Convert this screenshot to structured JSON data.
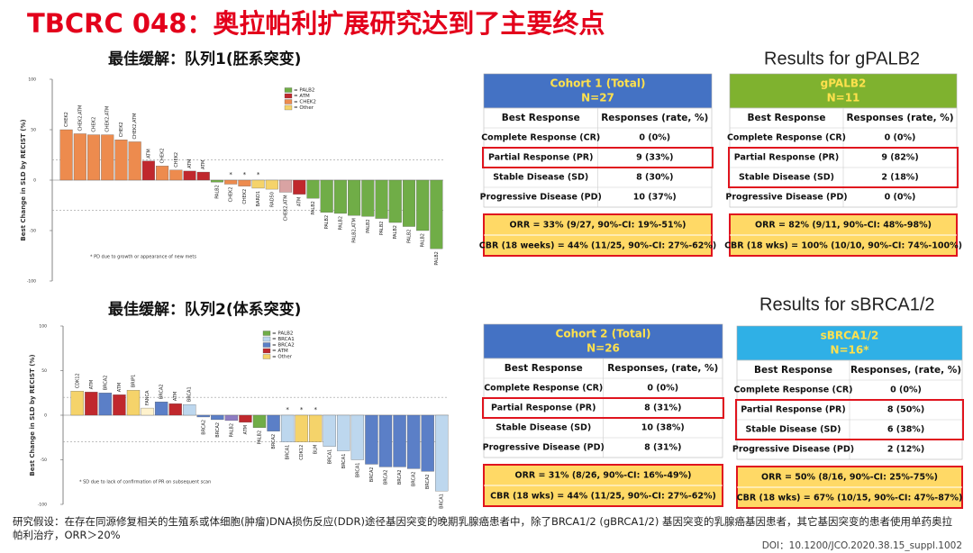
{
  "title": "TBCRC 048：奥拉帕利扩展研究达到了主要终点",
  "chart_data": [
    {
      "type": "bar",
      "title": "最佳缓解：队列1(胚系突变)",
      "y_label": "Best Change in SLD by RECIST (%)",
      "categories": [
        "CHEK2",
        "CHEK2,ATM",
        "CHEK2",
        "CHEK2,ATM",
        "CHEK2",
        "CHEK2,ATM",
        "ATM",
        "CHEK2",
        "CHEK2",
        "ATM",
        "ATM",
        "PALB2",
        "CHEK2",
        "CHEK2",
        "BARD1",
        "RAD50",
        "CHEK2,ATM",
        "ATM",
        "PALB2",
        "PALB2",
        "PALB2",
        "PALB2,ATM",
        "PALB2",
        "PALB2",
        "PALB2",
        "PALB2",
        "PALB2",
        "PALB2"
      ],
      "markers": [
        null,
        null,
        null,
        null,
        null,
        null,
        null,
        null,
        null,
        null,
        null,
        null,
        "*",
        "*",
        "*",
        null,
        null,
        null,
        null,
        null,
        null,
        null,
        null,
        null,
        null,
        null,
        null,
        null
      ],
      "values": [
        50,
        46,
        45,
        45,
        40,
        38,
        19,
        14,
        10,
        9,
        8,
        -2,
        -4,
        -6,
        -8,
        -9,
        -12,
        -14,
        -18,
        -32,
        -33,
        -35,
        -36,
        -38,
        -42,
        -46,
        -50,
        -68
      ],
      "colors": [
        "#ed8b4e",
        "#ed8b4e",
        "#ed8b4e",
        "#ed8b4e",
        "#ed8b4e",
        "#ed8b4e",
        "#c0282d",
        "#ed8b4e",
        "#ed8b4e",
        "#c0282d",
        "#c0282d",
        "#70ad47",
        "#ed8b4e",
        "#ed8b4e",
        "#f5d36a",
        "#f5d36a",
        "#d9a3a3",
        "#c0282d",
        "#70ad47",
        "#70ad47",
        "#70ad47",
        "#70ad47",
        "#70ad47",
        "#70ad47",
        "#70ad47",
        "#70ad47",
        "#70ad47",
        "#70ad47"
      ],
      "ylim": [
        -100,
        100
      ],
      "yticks": [
        -100,
        -50,
        0,
        50,
        100
      ],
      "ref_lines": [
        20,
        -30
      ],
      "legend": [
        {
          "label": "= PALB2",
          "color": "#70ad47"
        },
        {
          "label": "= ATM",
          "color": "#c0282d"
        },
        {
          "label": "= CHEK2",
          "color": "#ed8b4e"
        },
        {
          "label": "= Other",
          "color": "#f5d36a"
        }
      ],
      "note": "* PD due to growth or appearance of new mets"
    },
    {
      "type": "bar",
      "title": "最佳缓解：队列2(体系突变)",
      "y_label": "Best Change in SLD by RECIST (%)",
      "categories": [
        "CDK12",
        "ATM",
        "BRCA2",
        "ATM",
        "BRIP1",
        "FANCA",
        "BRCA2",
        "ATM",
        "BRCA1",
        "BRCA2",
        "BRCA2",
        "PALB2",
        "ATM",
        "PALB2",
        "BRCA2",
        "BRCA1",
        "CDK12",
        "BLM",
        "BRCA1",
        "BRCA1",
        "BRCA1",
        "BRCA2",
        "BRCA2",
        "BRCA2",
        "BRCA2",
        "BRCA2",
        "BRCA1"
      ],
      "markers": [
        null,
        null,
        null,
        null,
        null,
        null,
        null,
        null,
        null,
        null,
        null,
        null,
        null,
        null,
        null,
        "*",
        "*",
        "*",
        null,
        null,
        null,
        null,
        null,
        null,
        null,
        null,
        null
      ],
      "values": [
        27,
        26,
        25,
        23,
        28,
        8,
        15,
        13,
        12,
        -2,
        -5,
        -6,
        -8,
        -14,
        -18,
        -30,
        -30,
        -30,
        -35,
        -40,
        -50,
        -55,
        -58,
        -58,
        -60,
        -63,
        -85
      ],
      "colors": [
        "#f5d36a",
        "#c0282d",
        "#5b7fc7",
        "#c0282d",
        "#f5d36a",
        "#fff2cc",
        "#5b7fc7",
        "#c0282d",
        "#bdd7ee",
        "#5b7fc7",
        "#5b7fc7",
        "#8e7cc3",
        "#c0282d",
        "#70ad47",
        "#5b7fc7",
        "#bdd7ee",
        "#f5d36a",
        "#f5d36a",
        "#bdd7ee",
        "#bdd7ee",
        "#bdd7ee",
        "#5b7fc7",
        "#5b7fc7",
        "#5b7fc7",
        "#5b7fc7",
        "#5b7fc7",
        "#bdd7ee"
      ],
      "ylim": [
        -100,
        100
      ],
      "yticks": [
        -100,
        -50,
        0,
        50,
        100
      ],
      "ref_lines": [
        20,
        -30
      ],
      "legend": [
        {
          "label": "= PALB2",
          "color": "#70ad47"
        },
        {
          "label": "= BRCA1",
          "color": "#bdd7ee"
        },
        {
          "label": "= BRCA2",
          "color": "#5b7fc7"
        },
        {
          "label": "= ATM",
          "color": "#c0282d"
        },
        {
          "label": "= Other",
          "color": "#f5d36a"
        }
      ],
      "note": "* SD due to lack of confirmation of PR on subsequent scan"
    }
  ],
  "results_headings": [
    "Results for gPALB2",
    "Results for sBRCA1/2"
  ],
  "tables": [
    {
      "title": "Cohort 1 (Total)",
      "n": "N=27",
      "color": "#4472c4",
      "columns": [
        "Best Response",
        "Responses (rate, %)"
      ],
      "rows": [
        [
          "Complete Response (CR)",
          "0 (0%)"
        ],
        [
          "Partial Response (PR)",
          "9 (33%)"
        ],
        [
          "Stable Disease (SD)",
          "8 (30%)"
        ],
        [
          "Progressive Disease (PD)",
          "10 (37%)"
        ]
      ],
      "summary": [
        "ORR = 33% (9/27, 90%-CI: 19%-51%)",
        "CBR (18 weeks) = 44% (11/25, 90%-CI: 27%-62%)"
      ]
    },
    {
      "title": "gPALB2",
      "n": "N=11",
      "color": "#7fb22f",
      "columns": [
        "Best Response",
        "Responses (rate, %)"
      ],
      "rows": [
        [
          "Complete Response (CR)",
          "0 (0%)"
        ],
        [
          "Partial Response (PR)",
          "9 (82%)"
        ],
        [
          "Stable Disease (SD)",
          "2 (18%)"
        ],
        [
          "Progressive Disease (PD)",
          "0 (0%)"
        ]
      ],
      "summary": [
        "ORR = 82% (9/11, 90%-CI: 48%-98%)",
        "CBR (18 wks) = 100% (10/10, 90%-CI: 74%-100%)"
      ]
    },
    {
      "title": "Cohort 2 (Total)",
      "n": "N=26",
      "color": "#4472c4",
      "columns": [
        "Best Response",
        "Responses, (rate, %)"
      ],
      "rows": [
        [
          "Complete Response (CR)",
          "0 (0%)"
        ],
        [
          "Partial Response (PR)",
          "8 (31%)"
        ],
        [
          "Stable Disease (SD)",
          "10 (38%)"
        ],
        [
          "Progressive Disease (PD)",
          "8 (31%)"
        ]
      ],
      "summary": [
        "ORR = 31% (8/26, 90%-CI: 16%-49%)",
        "CBR (18 wks) = 44% (11/25, 90%-CI: 27%-62%)"
      ]
    },
    {
      "title": "sBRCA1/2",
      "n": "N=16*",
      "color": "#2fb0e6",
      "columns": [
        "Best Response",
        "Responses, (rate, %)"
      ],
      "rows": [
        [
          "Complete Response (CR)",
          "0 (0%)"
        ],
        [
          "Partial Response (PR)",
          "8 (50%)"
        ],
        [
          "Stable Disease (SD)",
          "6 (38%)"
        ],
        [
          "Progressive Disease (PD)",
          "2 (12%)"
        ]
      ],
      "summary": [
        "ORR = 50% (8/16, 90%-CI: 25%-75%)",
        "CBR (18 wks) = 67% (10/15, 90%-CI: 47%-87%)"
      ]
    }
  ],
  "footer": {
    "note": "研究假设：在存在同源修复相关的生殖系或体细胞(肿瘤)DNA损伤反应(DDR)途径基因突变的晚期乳腺癌患者中，除了BRCA1/2 (gBRCA1/2) 基因突变的乳腺癌基因患者，其它基因突变的患者使用单药奥拉帕利治疗，ORR＞20%",
    "doi": "DOI：10.1200/JCO.2020.38.15_suppl.1002"
  }
}
